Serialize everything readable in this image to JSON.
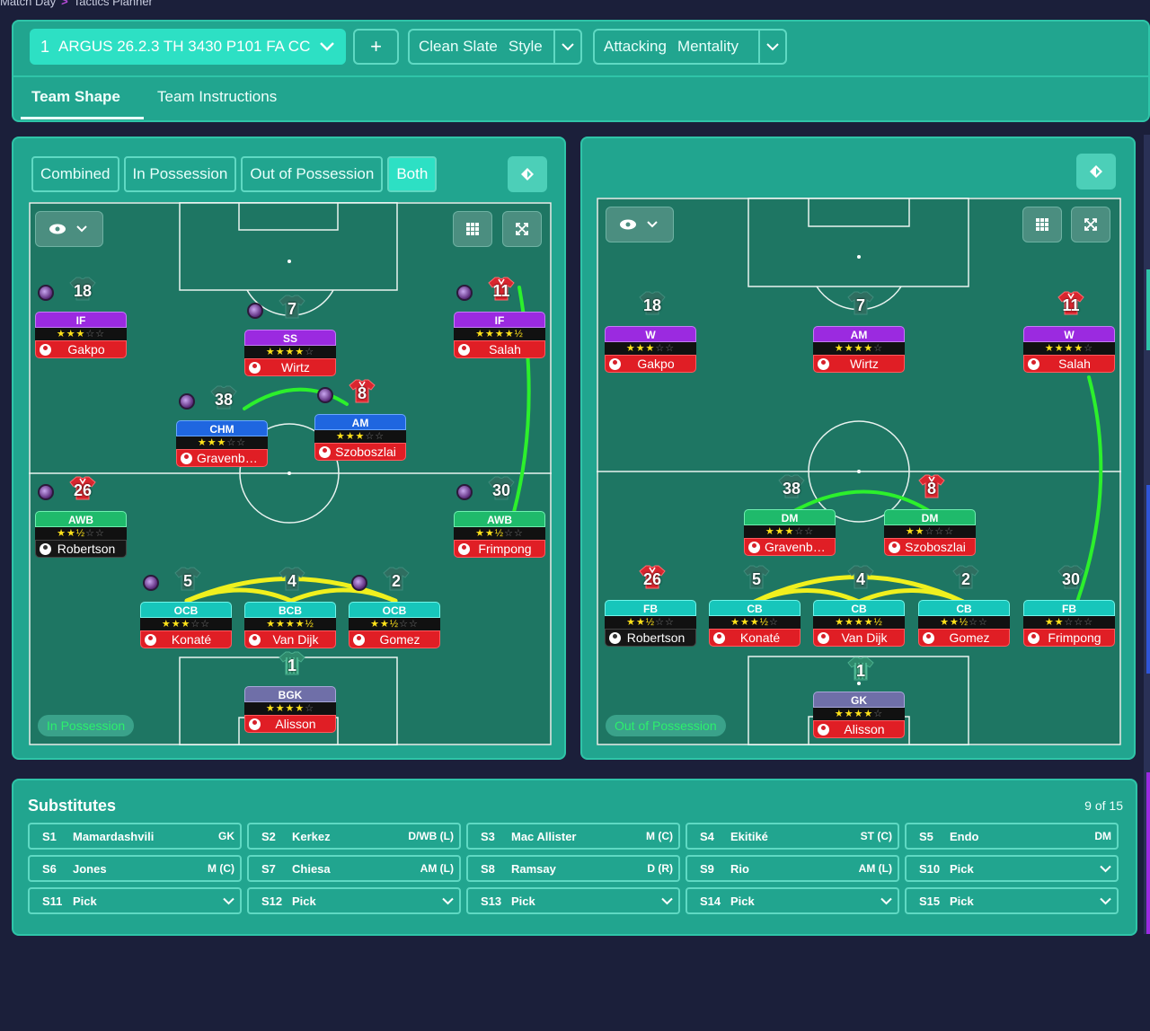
{
  "breadcrumb": {
    "first": "Match Day",
    "second": "Tactics Planner"
  },
  "header": {
    "tactic": {
      "number": "1",
      "name": "ARGUS 26.2.3 TH 3430 P101 FA CC"
    },
    "add_label": "+",
    "style": {
      "value": "Clean Slate",
      "label": "Style"
    },
    "mentality": {
      "value": "Attacking",
      "label": "Mentality"
    },
    "tabs": [
      "Team Shape",
      "Team Instructions"
    ],
    "active_tab": "Team Shape"
  },
  "view_tabs": {
    "items": [
      "Combined",
      "In Possession",
      "Out of Possession",
      "Both"
    ],
    "active": "Both"
  },
  "left_pitch": {
    "phase": "In Possession",
    "players": [
      {
        "id": "gakpo",
        "number": "18",
        "role": "IF",
        "stars": "★★★☆☆",
        "name": "Gakpo",
        "role_color": "purple",
        "name_color": "red",
        "token": true,
        "shirt": "grey"
      },
      {
        "id": "wirtz",
        "number": "7",
        "role": "SS",
        "stars": "★★★★☆",
        "name": "Wirtz",
        "role_color": "purple",
        "name_color": "red",
        "token": true,
        "shirt": "grey"
      },
      {
        "id": "salah",
        "number": "11",
        "role": "IF",
        "stars": "★★★★½",
        "name": "Salah",
        "role_color": "purple",
        "name_color": "red",
        "token": true,
        "shirt": "red"
      },
      {
        "id": "gravenberch",
        "number": "38",
        "role": "CHM",
        "stars": "★★★☆☆",
        "name": "Gravenber...",
        "role_color": "blue",
        "name_color": "red",
        "token": true,
        "shirt": "grey"
      },
      {
        "id": "szoboszlai",
        "number": "8",
        "role": "AM",
        "stars": "★★★☆☆",
        "name": "Szoboszlai",
        "role_color": "blue",
        "name_color": "red",
        "token": true,
        "shirt": "red"
      },
      {
        "id": "robertson",
        "number": "26",
        "role": "AWB",
        "stars": "★★½☆☆",
        "name": "Robertson",
        "role_color": "green",
        "name_color": "black",
        "token": true,
        "shirt": "red"
      },
      {
        "id": "frimpong",
        "number": "30",
        "role": "AWB",
        "stars": "★★½☆☆",
        "name": "Frimpong",
        "role_color": "green",
        "name_color": "red",
        "token": true,
        "shirt": "grey"
      },
      {
        "id": "konate",
        "number": "5",
        "role": "OCB",
        "stars": "★★★☆☆",
        "name": "Konaté",
        "role_color": "cyan",
        "name_color": "red",
        "token": true,
        "shirt": "grey"
      },
      {
        "id": "vandijk",
        "number": "4",
        "role": "BCB",
        "stars": "★★★★½",
        "name": "Van Dijk",
        "role_color": "cyan",
        "name_color": "red",
        "token": false,
        "shirt": "grey"
      },
      {
        "id": "gomez",
        "number": "2",
        "role": "OCB",
        "stars": "★★½☆☆",
        "name": "Gomez",
        "role_color": "cyan",
        "name_color": "red",
        "token": true,
        "shirt": "grey"
      },
      {
        "id": "alisson",
        "number": "1",
        "role": "BGK",
        "stars": "★★★★☆",
        "name": "Alisson",
        "role_color": "slate",
        "name_color": "red",
        "token": false,
        "shirt": "gk"
      }
    ]
  },
  "right_pitch": {
    "phase": "Out of Possession",
    "players": [
      {
        "id": "gakpo",
        "number": "18",
        "role": "W",
        "stars": "★★★☆☆",
        "name": "Gakpo",
        "role_color": "purple",
        "name_color": "red",
        "token": false,
        "shirt": "grey"
      },
      {
        "id": "wirtz",
        "number": "7",
        "role": "AM",
        "stars": "★★★★☆",
        "name": "Wirtz",
        "role_color": "purple",
        "name_color": "red",
        "token": false,
        "shirt": "grey"
      },
      {
        "id": "salah",
        "number": "11",
        "role": "W",
        "stars": "★★★★☆",
        "name": "Salah",
        "role_color": "purple",
        "name_color": "red",
        "token": false,
        "shirt": "red"
      },
      {
        "id": "gravenberch",
        "number": "38",
        "role": "DM",
        "stars": "★★★☆☆",
        "name": "Gravenber...",
        "role_color": "green",
        "name_color": "red",
        "token": false,
        "shirt": "grey"
      },
      {
        "id": "szoboszlai",
        "number": "8",
        "role": "DM",
        "stars": "★★☆☆☆",
        "name": "Szoboszlai",
        "role_color": "green",
        "name_color": "red",
        "token": false,
        "shirt": "red"
      },
      {
        "id": "robertson",
        "number": "26",
        "role": "FB",
        "stars": "★★½☆☆",
        "name": "Robertson",
        "role_color": "cyan",
        "name_color": "black",
        "token": false,
        "shirt": "red"
      },
      {
        "id": "konate",
        "number": "5",
        "role": "CB",
        "stars": "★★★½☆",
        "name": "Konaté",
        "role_color": "cyan",
        "name_color": "red",
        "token": false,
        "shirt": "grey"
      },
      {
        "id": "vandijk",
        "number": "4",
        "role": "CB",
        "stars": "★★★★½",
        "name": "Van Dijk",
        "role_color": "cyan",
        "name_color": "red",
        "token": false,
        "shirt": "grey"
      },
      {
        "id": "gomez",
        "number": "2",
        "role": "CB",
        "stars": "★★½☆☆",
        "name": "Gomez",
        "role_color": "cyan",
        "name_color": "red",
        "token": false,
        "shirt": "grey"
      },
      {
        "id": "frimpong",
        "number": "30",
        "role": "FB",
        "stars": "★★☆☆☆",
        "name": "Frimpong",
        "role_color": "cyan",
        "name_color": "red",
        "token": false,
        "shirt": "grey"
      },
      {
        "id": "alisson",
        "number": "1",
        "role": "GK",
        "stars": "★★★★☆",
        "name": "Alisson",
        "role_color": "slate",
        "name_color": "red",
        "token": false,
        "shirt": "gk"
      }
    ]
  },
  "substitutes": {
    "title": "Substitutes",
    "count": "9 of 15",
    "slots": [
      {
        "id": "S1",
        "name": "Mamardashvili",
        "pos": "GK"
      },
      {
        "id": "S2",
        "name": "Kerkez",
        "pos": "D/WB (L)"
      },
      {
        "id": "S3",
        "name": "Mac Allister",
        "pos": "M (C)"
      },
      {
        "id": "S4",
        "name": "Ekitiké",
        "pos": "ST (C)"
      },
      {
        "id": "S5",
        "name": "Endo",
        "pos": "DM"
      },
      {
        "id": "S6",
        "name": "Jones",
        "pos": "M (C)"
      },
      {
        "id": "S7",
        "name": "Chiesa",
        "pos": "AM (L)"
      },
      {
        "id": "S8",
        "name": "Ramsay",
        "pos": "D (R)"
      },
      {
        "id": "S9",
        "name": "Rio",
        "pos": "AM (L)"
      },
      {
        "id": "S10",
        "name": "Pick",
        "pos": ""
      },
      {
        "id": "S11",
        "name": "Pick",
        "pos": ""
      },
      {
        "id": "S12",
        "name": "Pick",
        "pos": ""
      },
      {
        "id": "S13",
        "name": "Pick",
        "pos": ""
      },
      {
        "id": "S14",
        "name": "Pick",
        "pos": ""
      },
      {
        "id": "S15",
        "name": "Pick",
        "pos": ""
      }
    ]
  },
  "icons": {
    "tactic_chevron": "chevron-down-icon",
    "marker": "diamond-marker-icon",
    "eye": "eye-icon",
    "grid": "grid-icon",
    "expand": "expand-icon"
  },
  "colors": {
    "panel": "#21a58f",
    "pitch": "#1e7663",
    "accent": "#2de0c4",
    "link_green": "#2cf02c",
    "link_yellow": "#f0f01e"
  }
}
